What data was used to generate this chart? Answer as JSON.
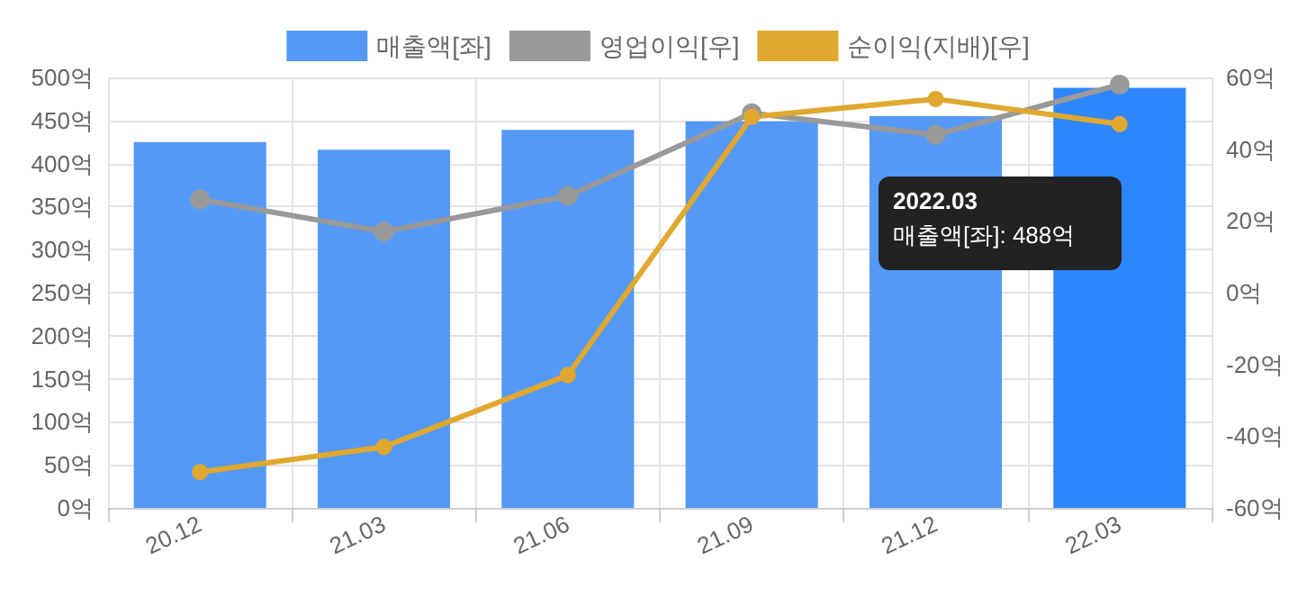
{
  "chart_data": {
    "type": "bar",
    "categories": [
      "20.12",
      "21.03",
      "21.06",
      "21.09",
      "21.12",
      "22.03"
    ],
    "series": [
      {
        "name": "매출액[좌]",
        "color": "#5599f7",
        "colors": [
          "#5599f7",
          "#5599f7",
          "#5599f7",
          "#5599f7",
          "#5599f7",
          "#2e86ff"
        ],
        "values": [
          425,
          416,
          439,
          449,
          455,
          488
        ]
      },
      {
        "name": "영업이익[우]",
        "type": "line",
        "axis": "y2",
        "color": "#999999",
        "values": [
          26,
          17,
          27,
          50,
          44,
          58
        ]
      },
      {
        "name": "순이익(지배)[우]",
        "type": "line",
        "axis": "y2",
        "color": "#e0a82e",
        "values": [
          -50,
          -43,
          -23,
          49,
          54,
          47
        ]
      }
    ],
    "ylim": [
      0,
      500
    ],
    "yticks": [
      {
        "value": 0,
        "label": "0억"
      },
      {
        "value": 50,
        "label": "50억"
      },
      {
        "value": 100,
        "label": "100억"
      },
      {
        "value": 150,
        "label": "150억"
      },
      {
        "value": 200,
        "label": "200억"
      },
      {
        "value": 250,
        "label": "250억"
      },
      {
        "value": 300,
        "label": "300억"
      },
      {
        "value": 350,
        "label": "350억"
      },
      {
        "value": 400,
        "label": "400억"
      },
      {
        "value": 450,
        "label": "450억"
      },
      {
        "value": 500,
        "label": "500억"
      }
    ],
    "y2lim": [
      -60,
      60
    ],
    "y2ticks": [
      {
        "value": -60,
        "label": "-60억"
      },
      {
        "value": -40,
        "label": "-40억"
      },
      {
        "value": -20,
        "label": "-20억"
      },
      {
        "value": 0,
        "label": "0억"
      },
      {
        "value": 20,
        "label": "20억"
      },
      {
        "value": 40,
        "label": "40억"
      },
      {
        "value": 60,
        "label": "60억"
      }
    ],
    "annotations": [
      "2022.03",
      "매출액[좌]: 488억"
    ],
    "grid": true,
    "legend": "top",
    "marker": "circle",
    "line_style": "solid"
  }
}
